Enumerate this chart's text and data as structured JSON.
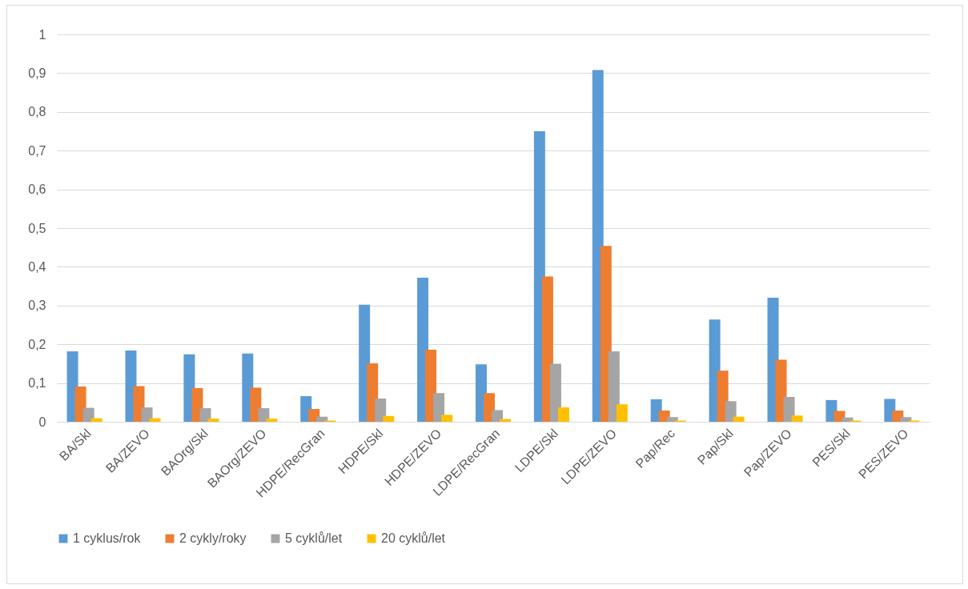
{
  "chart_data": {
    "type": "bar",
    "categories": [
      "BA/Skl",
      "BA/ZEVO",
      "BAOrg/Skl",
      "BAOrg/ZEVO",
      "HDPE/RecGran",
      "HDPE/Skl",
      "HDPE/ZEVO",
      "LDPE/RecGran",
      "LDPE/Skl",
      "LDPE/ZEVO",
      "Pap/Rec",
      "Pap/Skl",
      "Pap/ZEVO",
      "PES/Skl",
      "PES/ZEVO"
    ],
    "series": [
      {
        "name": "1 cyklus/rok",
        "color": "#5b9bd5",
        "values": [
          0.182,
          0.184,
          0.174,
          0.176,
          0.066,
          0.302,
          0.372,
          0.148,
          0.75,
          0.908,
          0.058,
          0.264,
          0.32,
          0.056,
          0.059
        ]
      },
      {
        "name": "2 cykly/roky",
        "color": "#ed7d31",
        "values": [
          0.091,
          0.092,
          0.087,
          0.088,
          0.033,
          0.151,
          0.186,
          0.074,
          0.375,
          0.454,
          0.029,
          0.132,
          0.16,
          0.028,
          0.029
        ]
      },
      {
        "name": "5 cyklů/let",
        "color": "#a5a5a5",
        "values": [
          0.036,
          0.037,
          0.035,
          0.035,
          0.013,
          0.06,
          0.074,
          0.03,
          0.15,
          0.182,
          0.012,
          0.053,
          0.064,
          0.011,
          0.012
        ]
      },
      {
        "name": "20 cyklů/let",
        "color": "#ffc000",
        "values": [
          0.009,
          0.009,
          0.008,
          0.008,
          0.003,
          0.015,
          0.018,
          0.007,
          0.037,
          0.045,
          0.003,
          0.013,
          0.016,
          0.003,
          0.003
        ]
      }
    ],
    "ylim": [
      0,
      1
    ],
    "yticks": [
      0,
      {
        "value": 0.1,
        "label": "0,1"
      },
      {
        "value": 0.2,
        "label": "0,2"
      },
      {
        "value": 0.3,
        "label": "0,3"
      },
      {
        "value": 0.4,
        "label": "0,4"
      },
      {
        "value": 0.5,
        "label": "0,5"
      },
      {
        "value": 0.6,
        "label": "0,6"
      },
      {
        "value": 0.7,
        "label": "0,7"
      },
      {
        "value": 0.8,
        "label": "0,8"
      },
      {
        "value": 0.9,
        "label": "0,9"
      },
      1
    ],
    "grid": "y",
    "legend": "bottom"
  }
}
